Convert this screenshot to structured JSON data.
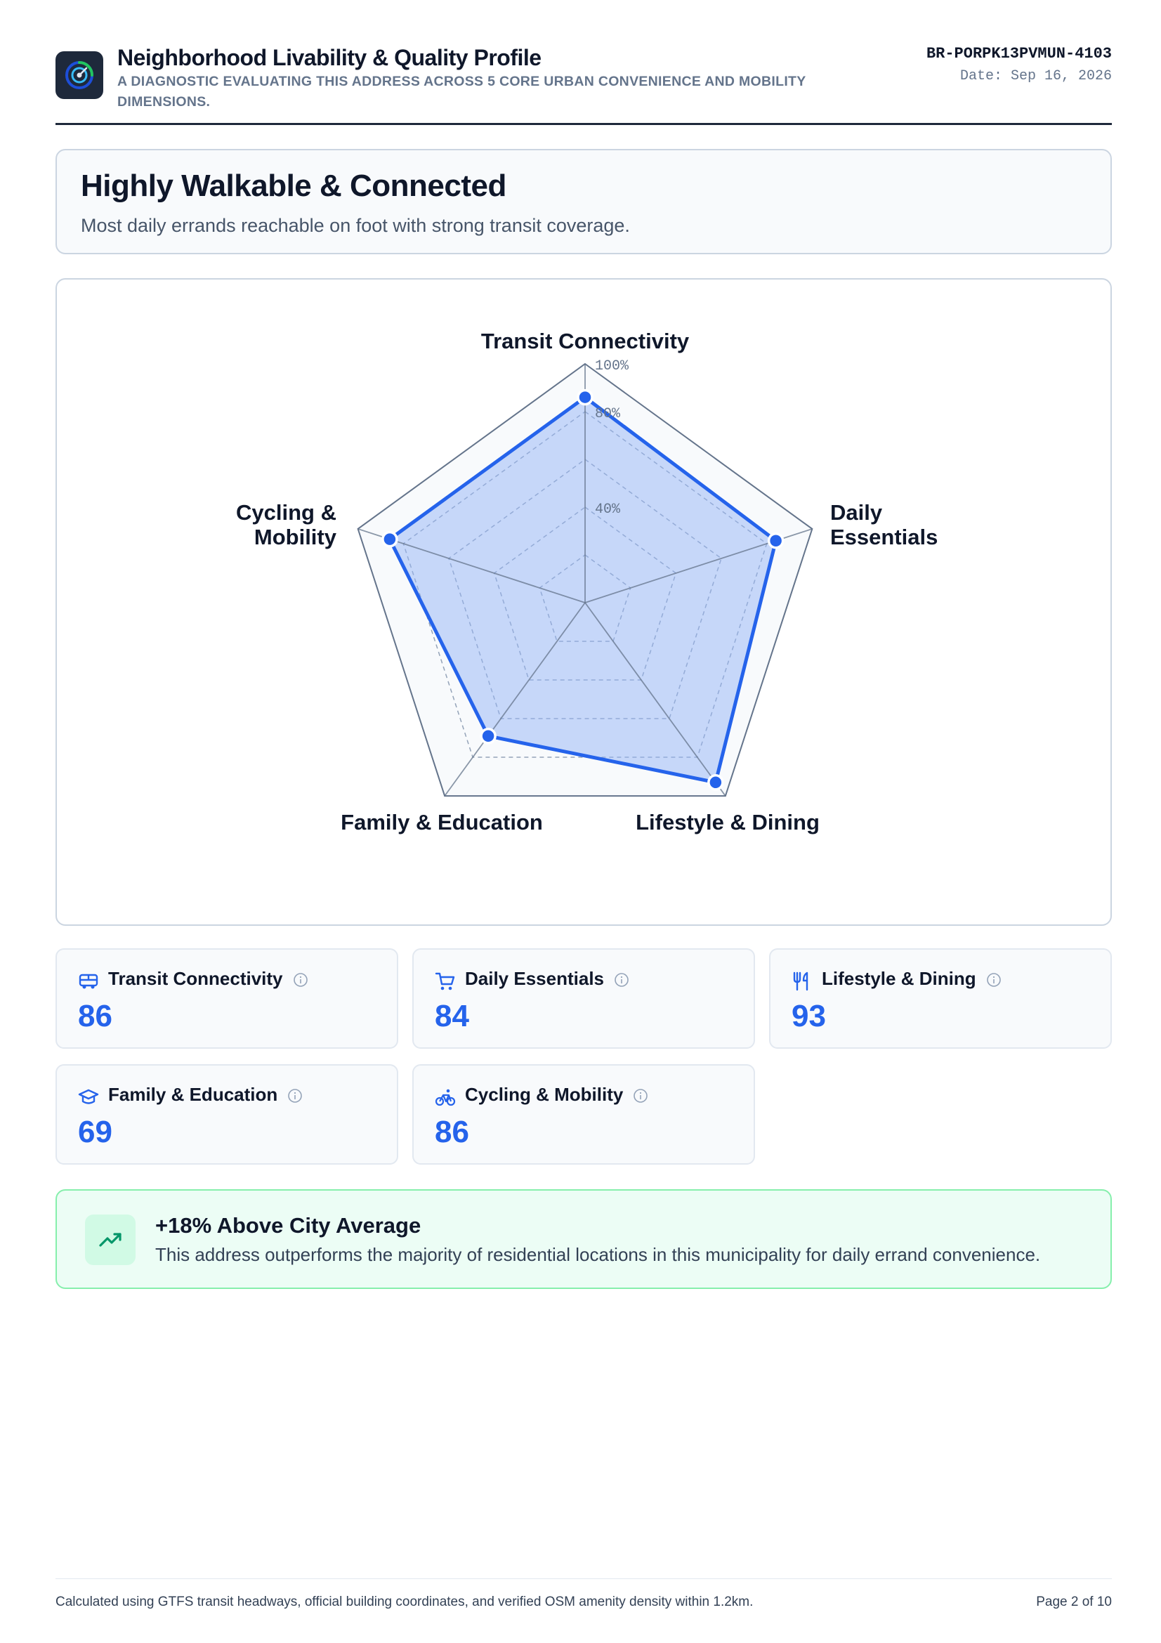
{
  "header": {
    "title": "Neighborhood Livability & Quality Profile",
    "subtitle": "A DIAGNOSTIC EVALUATING THIS ADDRESS ACROSS 5 CORE URBAN CONVENIENCE AND MOBILITY DIMENSIONS.",
    "doc_id": "BR-PORPK13PVMUN-4103",
    "date": "Date: Sep 16, 2026",
    "logo_icon": "gauge-icon"
  },
  "verdict": {
    "title": "Highly Walkable & Connected",
    "description": "Most daily errands reachable on foot with strong transit coverage."
  },
  "chart_data": {
    "type": "radar",
    "categories": [
      "Transit Connectivity",
      "Daily Essentials",
      "Lifestyle & Dining",
      "Family & Education",
      "Cycling & Mobility"
    ],
    "category_lines": [
      [
        "Transit Connectivity"
      ],
      [
        "Daily",
        "Essentials"
      ],
      [
        "Lifestyle & Dining"
      ],
      [
        "Family & Education"
      ],
      [
        "Cycling &",
        "Mobility"
      ]
    ],
    "values": [
      86,
      84,
      93,
      69,
      86
    ],
    "range": [
      0,
      100
    ],
    "ticks": [
      40,
      80,
      100
    ],
    "tick_labels": [
      "40%",
      "80%",
      "100%"
    ],
    "grid": true,
    "legend": "none",
    "colors": {
      "series": "#2563eb",
      "fill": "#93b4f5",
      "grid": "#94a3b8",
      "outer": "#64748b"
    }
  },
  "cards": [
    {
      "label": "Transit Connectivity",
      "value": "86",
      "icon": "bus-icon"
    },
    {
      "label": "Daily Essentials",
      "value": "84",
      "icon": "cart-icon"
    },
    {
      "label": "Lifestyle & Dining",
      "value": "93",
      "icon": "utensils-icon"
    },
    {
      "label": "Family & Education",
      "value": "69",
      "icon": "graduation-cap-icon"
    },
    {
      "label": "Cycling & Mobility",
      "value": "86",
      "icon": "bike-icon"
    }
  ],
  "insight": {
    "title": "+18% Above City Average",
    "description": "This address outperforms the majority of residential locations in this municipality for daily errand convenience.",
    "icon": "trending-up-icon"
  },
  "footer": {
    "note": "Calculated using GTFS transit headways, official building coordinates, and verified OSM amenity density within 1.2km.",
    "page": "Page 2 of 10"
  }
}
